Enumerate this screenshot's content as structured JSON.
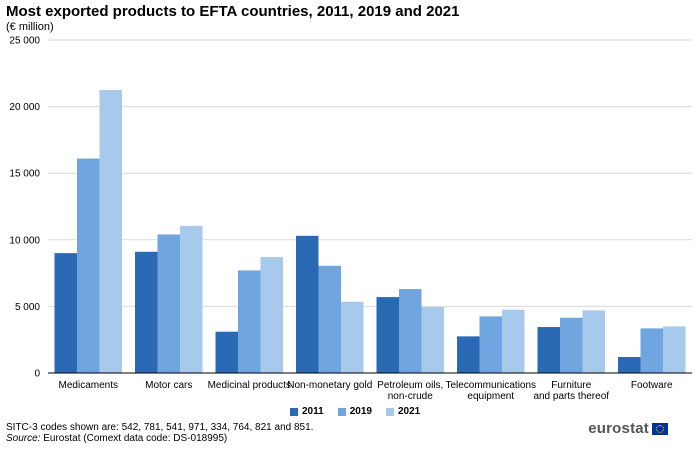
{
  "header": {
    "title": "Most exported products to EFTA countries, 2011, 2019 and 2021",
    "subtitle": "(€ million)"
  },
  "colors": {
    "2011": "#2a6ab4",
    "2019": "#70a6df",
    "2021": "#a6c9ec",
    "grid": "#d9d9d9",
    "axis": "#000000"
  },
  "chart_data": {
    "type": "bar",
    "title": "Most exported products to EFTA countries, 2011, 2019 and 2021",
    "subtitle": "(€ million)",
    "xlabel": "",
    "ylabel": "",
    "ylim": [
      0,
      25000
    ],
    "yticks": [
      0,
      5000,
      10000,
      15000,
      20000,
      25000
    ],
    "ytick_labels": [
      "0",
      "5 000",
      "10 000",
      "15 000",
      "20 000",
      "25 000"
    ],
    "grid": true,
    "legend_position": "bottom-center",
    "categories": [
      [
        "Medicaments"
      ],
      [
        "Motor cars"
      ],
      [
        "Medicinal products"
      ],
      [
        "Non-monetary gold"
      ],
      [
        "Petroleum oils,",
        "non-crude"
      ],
      [
        "Telecommunications",
        "equipment"
      ],
      [
        "Furniture",
        "and parts thereof"
      ],
      [
        "Footware"
      ]
    ],
    "series": [
      {
        "name": "2011",
        "values": [
          9000,
          9100,
          3100,
          10300,
          5700,
          2750,
          3450,
          1200
        ]
      },
      {
        "name": "2019",
        "values": [
          16100,
          10400,
          7700,
          8050,
          6300,
          4250,
          4150,
          3350
        ]
      },
      {
        "name": "2021",
        "values": [
          21250,
          11050,
          8700,
          5350,
          4950,
          4750,
          4700,
          3500
        ]
      }
    ]
  },
  "footer": {
    "note": "SITC-3 codes shown are: 542, 781, 541, 971, 334, 764, 821 and 851.",
    "source_label": "Source:",
    "source_text": " Eurostat (Comext data code: DS-018995)",
    "logo_text": "eurostat"
  }
}
